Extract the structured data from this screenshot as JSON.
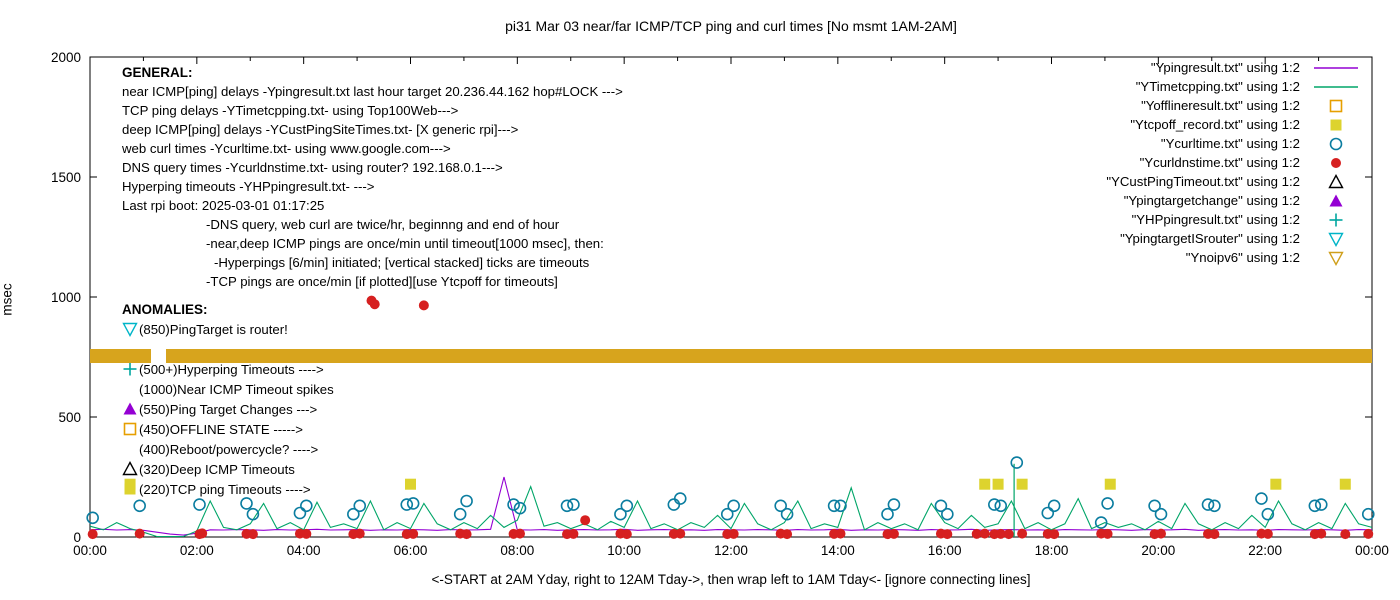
{
  "title": "pi31 Mar 03  near/far ICMP/TCP ping and curl times [No msmt 1AM-2AM]",
  "axes": {
    "ylabel": "msec",
    "xlabel": "<-START at 2AM Yday, right to 12AM Tday->, then wrap left to 1AM Tday<- [ignore connecting lines]",
    "yticks": [
      {
        "label": "0",
        "value": 0
      },
      {
        "label": "500",
        "value": 500
      },
      {
        "label": "1000",
        "value": 1000
      },
      {
        "label": "1500",
        "value": 1500
      },
      {
        "label": "2000",
        "value": 2000
      }
    ],
    "xticks": [
      {
        "label": "00:00",
        "value": 0
      },
      {
        "label": "02:00",
        "value": 2
      },
      {
        "label": "04:00",
        "value": 4
      },
      {
        "label": "06:00",
        "value": 6
      },
      {
        "label": "08:00",
        "value": 8
      },
      {
        "label": "10:00",
        "value": 10
      },
      {
        "label": "12:00",
        "value": 12
      },
      {
        "label": "14:00",
        "value": 14
      },
      {
        "label": "16:00",
        "value": 16
      },
      {
        "label": "18:00",
        "value": 18
      },
      {
        "label": "20:00",
        "value": 20
      },
      {
        "label": "22:00",
        "value": 22
      },
      {
        "label": "00:00",
        "value": 24
      }
    ]
  },
  "legend": [
    {
      "label": "\"Ypingresult.txt\" using 1:2",
      "marker": "line",
      "color": "#9400d3"
    },
    {
      "label": "\"YTimetcpping.txt\" using 1:2",
      "marker": "line",
      "color": "#00a568"
    },
    {
      "label": "\"Yofflineresult.txt\" using 1:2",
      "marker": "square-open",
      "color": "#e69f00"
    },
    {
      "label": "\"Ytcpoff_record.txt\" using 1:2",
      "marker": "square-filled",
      "color": "#ddd32e"
    },
    {
      "label": "\"Ycurltime.txt\" using 1:2",
      "marker": "circle-open",
      "color": "#0b7da0"
    },
    {
      "label": "\"Ycurldnstime.txt\" using 1:2",
      "marker": "circle-filled",
      "color": "#d62020"
    },
    {
      "label": "\"YCustPingTimeout.txt\" using 1:2",
      "marker": "tri-up-open",
      "color": "#000000"
    },
    {
      "label": "\"Ypingtargetchange\" using 1:2",
      "marker": "tri-up-filled",
      "color": "#9400d3"
    },
    {
      "label": "\"YHPpingresult.txt\" using 1:2",
      "marker": "plus",
      "color": "#00a7a0"
    },
    {
      "label": "\"YpingtargetISrouter\" using 1:2",
      "marker": "tri-down-open",
      "color": "#00b5c8"
    },
    {
      "label": "\"Ynoipv6\" using 1:2",
      "marker": "tri-down-open",
      "color": "#cf9f1b"
    }
  ],
  "general": {
    "heading": "GENERAL:",
    "lines": [
      "near ICMP[ping] delays -Ypingresult.txt last hour target 20.236.44.162 hop#LOCK --->",
      "TCP ping delays -YTimetcpping.txt- using Top100Web--->",
      "deep ICMP[ping] delays -YCustPingSiteTimes.txt- [X generic rpi]--->",
      "web curl times -Ycurltime.txt- using www.google.com--->",
      "DNS query times -Ycurldnstime.txt- using router? 192.168.0.1--->",
      "Hyperping timeouts -YHPpingresult.txt- --->",
      "Last rpi boot: 2025-03-01 01:17:25"
    ],
    "notes": [
      {
        "indent": 84,
        "text": "-DNS query, web curl are twice/hr, beginnng and end of hour"
      },
      {
        "indent": 84,
        "text": "-near,deep ICMP pings are once/min until timeout[1000 msec], then:"
      },
      {
        "indent": 92,
        "text": "-Hyperpings [6/min] initiated; [vertical stacked] ticks are timeouts"
      },
      {
        "indent": 84,
        "text": "-TCP pings are once/min [if plotted][use Ytcpoff for timeouts]"
      }
    ]
  },
  "anomalies": {
    "heading": "ANOMALIES:",
    "items": [
      {
        "marker": "tri-down-open",
        "color": "#00b5c8",
        "text": "(850)PingTarget is router!"
      },
      {
        "marker": "none",
        "color": "#000000",
        "text": ""
      },
      {
        "marker": "plus",
        "color": "#00a7a0",
        "text": "(500+)Hyperping Timeouts ---->"
      },
      {
        "marker": "none",
        "color": "#000000",
        "text": "(1000)Near ICMP Timeout spikes"
      },
      {
        "marker": "tri-up-filled",
        "color": "#9400d3",
        "text": "(550)Ping Target Changes --->"
      },
      {
        "marker": "square-open",
        "color": "#e69f00",
        "text": "(450)OFFLINE STATE ----->"
      },
      {
        "marker": "none",
        "color": "#000000",
        "text": "(400)Reboot/powercycle? ---->"
      },
      {
        "marker": "tri-up-open",
        "color": "#000000",
        "text": "(320)Deep ICMP Timeouts"
      },
      {
        "marker": "square-filled",
        "color": "#ddd32e",
        "text": "(220)TCP ping Timeouts ---->"
      }
    ]
  },
  "chart_data": {
    "type": "line",
    "x_unit": "hours",
    "x_range": [
      0,
      24
    ],
    "y_range": [
      0,
      2000
    ],
    "grid": false,
    "legend_position": "top-right-inside",
    "series": [
      {
        "name": "Ypingresult",
        "type": "line",
        "color": "#9400d3",
        "x_start": 0,
        "x_step": 0.25,
        "values": [
          30,
          32,
          29,
          31,
          28,
          20,
          12,
          8,
          16,
          30,
          29,
          31,
          30,
          28,
          31,
          29,
          30,
          32,
          29,
          30,
          31,
          28,
          30,
          29,
          31,
          30,
          28,
          31,
          29,
          30,
          32,
          250,
          30,
          29,
          31,
          28,
          30,
          31,
          29,
          30,
          32,
          28,
          30,
          31,
          29,
          30,
          28,
          31,
          30,
          29,
          31,
          30,
          28,
          31,
          29,
          30,
          32,
          28,
          30,
          29,
          31,
          30,
          28,
          31,
          29,
          30,
          32,
          28,
          30,
          31,
          29,
          30,
          28,
          31,
          30,
          29,
          31,
          30,
          28,
          31,
          29,
          30,
          32,
          28,
          30,
          31,
          29,
          30,
          28,
          31,
          30,
          29,
          31,
          30,
          28,
          31,
          30
        ]
      },
      {
        "name": "YTimetcpping",
        "type": "line",
        "color": "#00a568",
        "x_start": 0,
        "x_step": 0.25,
        "values": [
          45,
          30,
          60,
          35,
          20,
          2,
          2,
          2,
          25,
          150,
          40,
          30,
          55,
          140,
          35,
          60,
          30,
          145,
          40,
          55,
          35,
          150,
          30,
          60,
          35,
          140,
          55,
          30,
          60,
          35,
          90,
          40,
          70,
          210,
          45,
          60,
          35,
          55,
          30,
          65,
          40,
          150,
          35,
          55,
          30,
          60,
          40,
          90,
          35,
          140,
          55,
          30,
          60,
          150,
          35,
          55,
          40,
          205,
          30,
          60,
          35,
          55,
          30,
          140,
          60,
          35,
          90,
          40,
          55,
          150,
          35,
          60,
          30,
          55,
          160,
          35,
          60,
          40,
          55,
          30,
          65,
          35,
          140,
          55,
          30,
          60,
          35,
          90,
          40,
          150,
          55,
          30,
          60,
          35,
          140,
          55,
          40
        ]
      },
      {
        "name": "YHPpingresult_timeout_ticks",
        "type": "impulses",
        "color": "#00a568",
        "points": [
          [
            17.3,
            305
          ]
        ]
      },
      {
        "name": "Ycurltime",
        "type": "scatter",
        "marker": "circle-open",
        "color": "#0b7da0",
        "points": [
          [
            0.05,
            80
          ],
          [
            0.93,
            130
          ],
          [
            2.05,
            135
          ],
          [
            2.93,
            140
          ],
          [
            3.05,
            95
          ],
          [
            3.93,
            100
          ],
          [
            4.05,
            130
          ],
          [
            4.93,
            95
          ],
          [
            5.05,
            130
          ],
          [
            5.93,
            135
          ],
          [
            6.05,
            140
          ],
          [
            6.93,
            95
          ],
          [
            7.05,
            150
          ],
          [
            7.93,
            135
          ],
          [
            8.05,
            120
          ],
          [
            8.93,
            130
          ],
          [
            9.05,
            135
          ],
          [
            9.93,
            95
          ],
          [
            10.05,
            130
          ],
          [
            10.93,
            135
          ],
          [
            11.05,
            160
          ],
          [
            11.93,
            95
          ],
          [
            12.05,
            130
          ],
          [
            12.93,
            130
          ],
          [
            13.05,
            95
          ],
          [
            13.93,
            130
          ],
          [
            14.05,
            130
          ],
          [
            14.93,
            95
          ],
          [
            15.05,
            135
          ],
          [
            15.93,
            130
          ],
          [
            16.05,
            95
          ],
          [
            16.93,
            135
          ],
          [
            17.05,
            130
          ],
          [
            17.35,
            310
          ],
          [
            17.93,
            100
          ],
          [
            18.05,
            130
          ],
          [
            18.93,
            60
          ],
          [
            19.05,
            140
          ],
          [
            19.93,
            130
          ],
          [
            20.05,
            95
          ],
          [
            20.93,
            135
          ],
          [
            21.05,
            130
          ],
          [
            21.93,
            160
          ],
          [
            22.05,
            95
          ],
          [
            22.93,
            130
          ],
          [
            23.05,
            135
          ],
          [
            23.93,
            95
          ]
        ]
      },
      {
        "name": "Ycurldnstime",
        "type": "scatter",
        "marker": "circle-filled",
        "color": "#d62020",
        "points": [
          [
            0.05,
            12
          ],
          [
            0.93,
            14
          ],
          [
            2.05,
            12
          ],
          [
            2.1,
            15
          ],
          [
            2.93,
            13
          ],
          [
            3.05,
            12
          ],
          [
            3.93,
            14
          ],
          [
            4.05,
            13
          ],
          [
            4.93,
            12
          ],
          [
            5.05,
            14
          ],
          [
            5.27,
            985
          ],
          [
            5.33,
            970
          ],
          [
            5.93,
            12
          ],
          [
            6.05,
            13
          ],
          [
            6.25,
            965
          ],
          [
            6.93,
            14
          ],
          [
            7.05,
            12
          ],
          [
            7.93,
            13
          ],
          [
            8.05,
            14
          ],
          [
            8.93,
            12
          ],
          [
            9.05,
            13
          ],
          [
            9.27,
            70
          ],
          [
            9.93,
            14
          ],
          [
            10.05,
            12
          ],
          [
            10.93,
            13
          ],
          [
            11.05,
            14
          ],
          [
            11.93,
            12
          ],
          [
            12.05,
            13
          ],
          [
            12.93,
            14
          ],
          [
            13.05,
            12
          ],
          [
            13.93,
            13
          ],
          [
            14.05,
            14
          ],
          [
            14.93,
            12
          ],
          [
            15.05,
            13
          ],
          [
            15.93,
            14
          ],
          [
            16.05,
            12
          ],
          [
            16.6,
            13
          ],
          [
            16.75,
            14
          ],
          [
            16.93,
            12
          ],
          [
            17.05,
            13
          ],
          [
            17.2,
            12
          ],
          [
            17.45,
            14
          ],
          [
            17.93,
            13
          ],
          [
            18.05,
            12
          ],
          [
            18.93,
            14
          ],
          [
            19.05,
            13
          ],
          [
            19.93,
            12
          ],
          [
            20.05,
            14
          ],
          [
            20.93,
            13
          ],
          [
            21.05,
            12
          ],
          [
            21.93,
            14
          ],
          [
            22.05,
            13
          ],
          [
            22.93,
            12
          ],
          [
            23.05,
            14
          ],
          [
            23.5,
            12
          ],
          [
            23.93,
            13
          ]
        ]
      },
      {
        "name": "Ytcpoff_record",
        "type": "scatter",
        "marker": "square-filled",
        "color": "#ddd32e",
        "points": [
          [
            0.75,
            220
          ],
          [
            6.0,
            220
          ],
          [
            16.75,
            220
          ],
          [
            17.0,
            220
          ],
          [
            17.45,
            220
          ],
          [
            19.1,
            220
          ],
          [
            22.2,
            220
          ],
          [
            23.5,
            220
          ]
        ]
      },
      {
        "name": "Ynoipv6",
        "type": "band",
        "color": "#d7a41d",
        "y_span": [
          725,
          785
        ],
        "segments": [
          [
            0,
            1.15
          ],
          [
            1.42,
            24
          ]
        ]
      }
    ]
  }
}
